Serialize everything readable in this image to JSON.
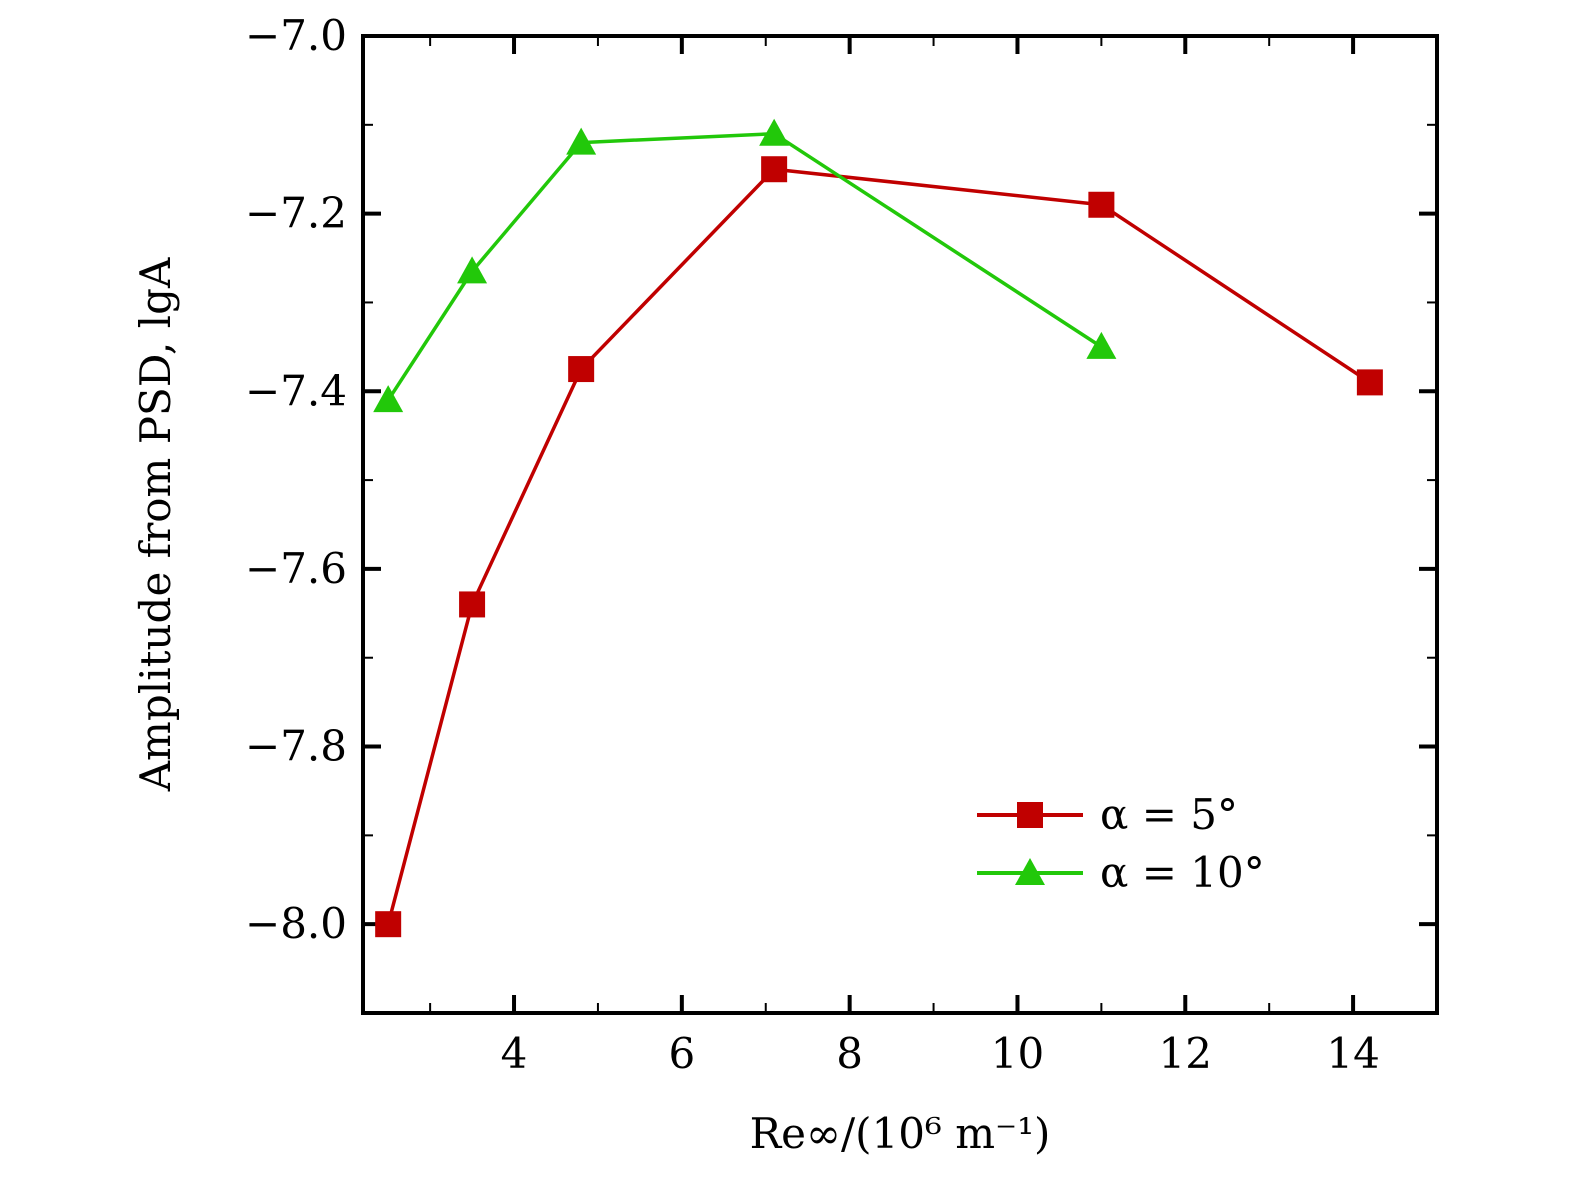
{
  "chart_data": {
    "type": "line",
    "xlabel": "Re∞/(10⁶ m⁻¹)",
    "ylabel": "Amplitude from PSD, lgA",
    "xlim": [
      2.2,
      15.0
    ],
    "ylim": [
      -8.1,
      -7.0
    ],
    "x_ticks": [
      4,
      6,
      8,
      10,
      12,
      14
    ],
    "x_tick_labels": [
      "4",
      "6",
      "8",
      "10",
      "12",
      "14"
    ],
    "x_minor_step": 1,
    "y_ticks": [
      -7.0,
      -7.2,
      -7.4,
      -7.6,
      -7.8,
      -8.0
    ],
    "y_tick_labels": [
      "−7.0",
      "−7.2",
      "−7.4",
      "−7.6",
      "−7.8",
      "−8.0"
    ],
    "y_minor_step": 0.1,
    "grid": false,
    "legend_position": "bottom-right",
    "series": [
      {
        "name": "α = 5°",
        "color": "#c00000",
        "marker": "square",
        "x": [
          2.5,
          3.5,
          4.8,
          7.1,
          11.0,
          14.2
        ],
        "y": [
          -8.0,
          -7.64,
          -7.375,
          -7.15,
          -7.19,
          -7.39
        ]
      },
      {
        "name": "α = 10°",
        "color": "#22c80a",
        "marker": "triangle",
        "x": [
          2.5,
          3.5,
          4.8,
          7.1,
          11.0
        ],
        "y": [
          -7.41,
          -7.265,
          -7.12,
          -7.11,
          -7.35
        ]
      }
    ]
  }
}
